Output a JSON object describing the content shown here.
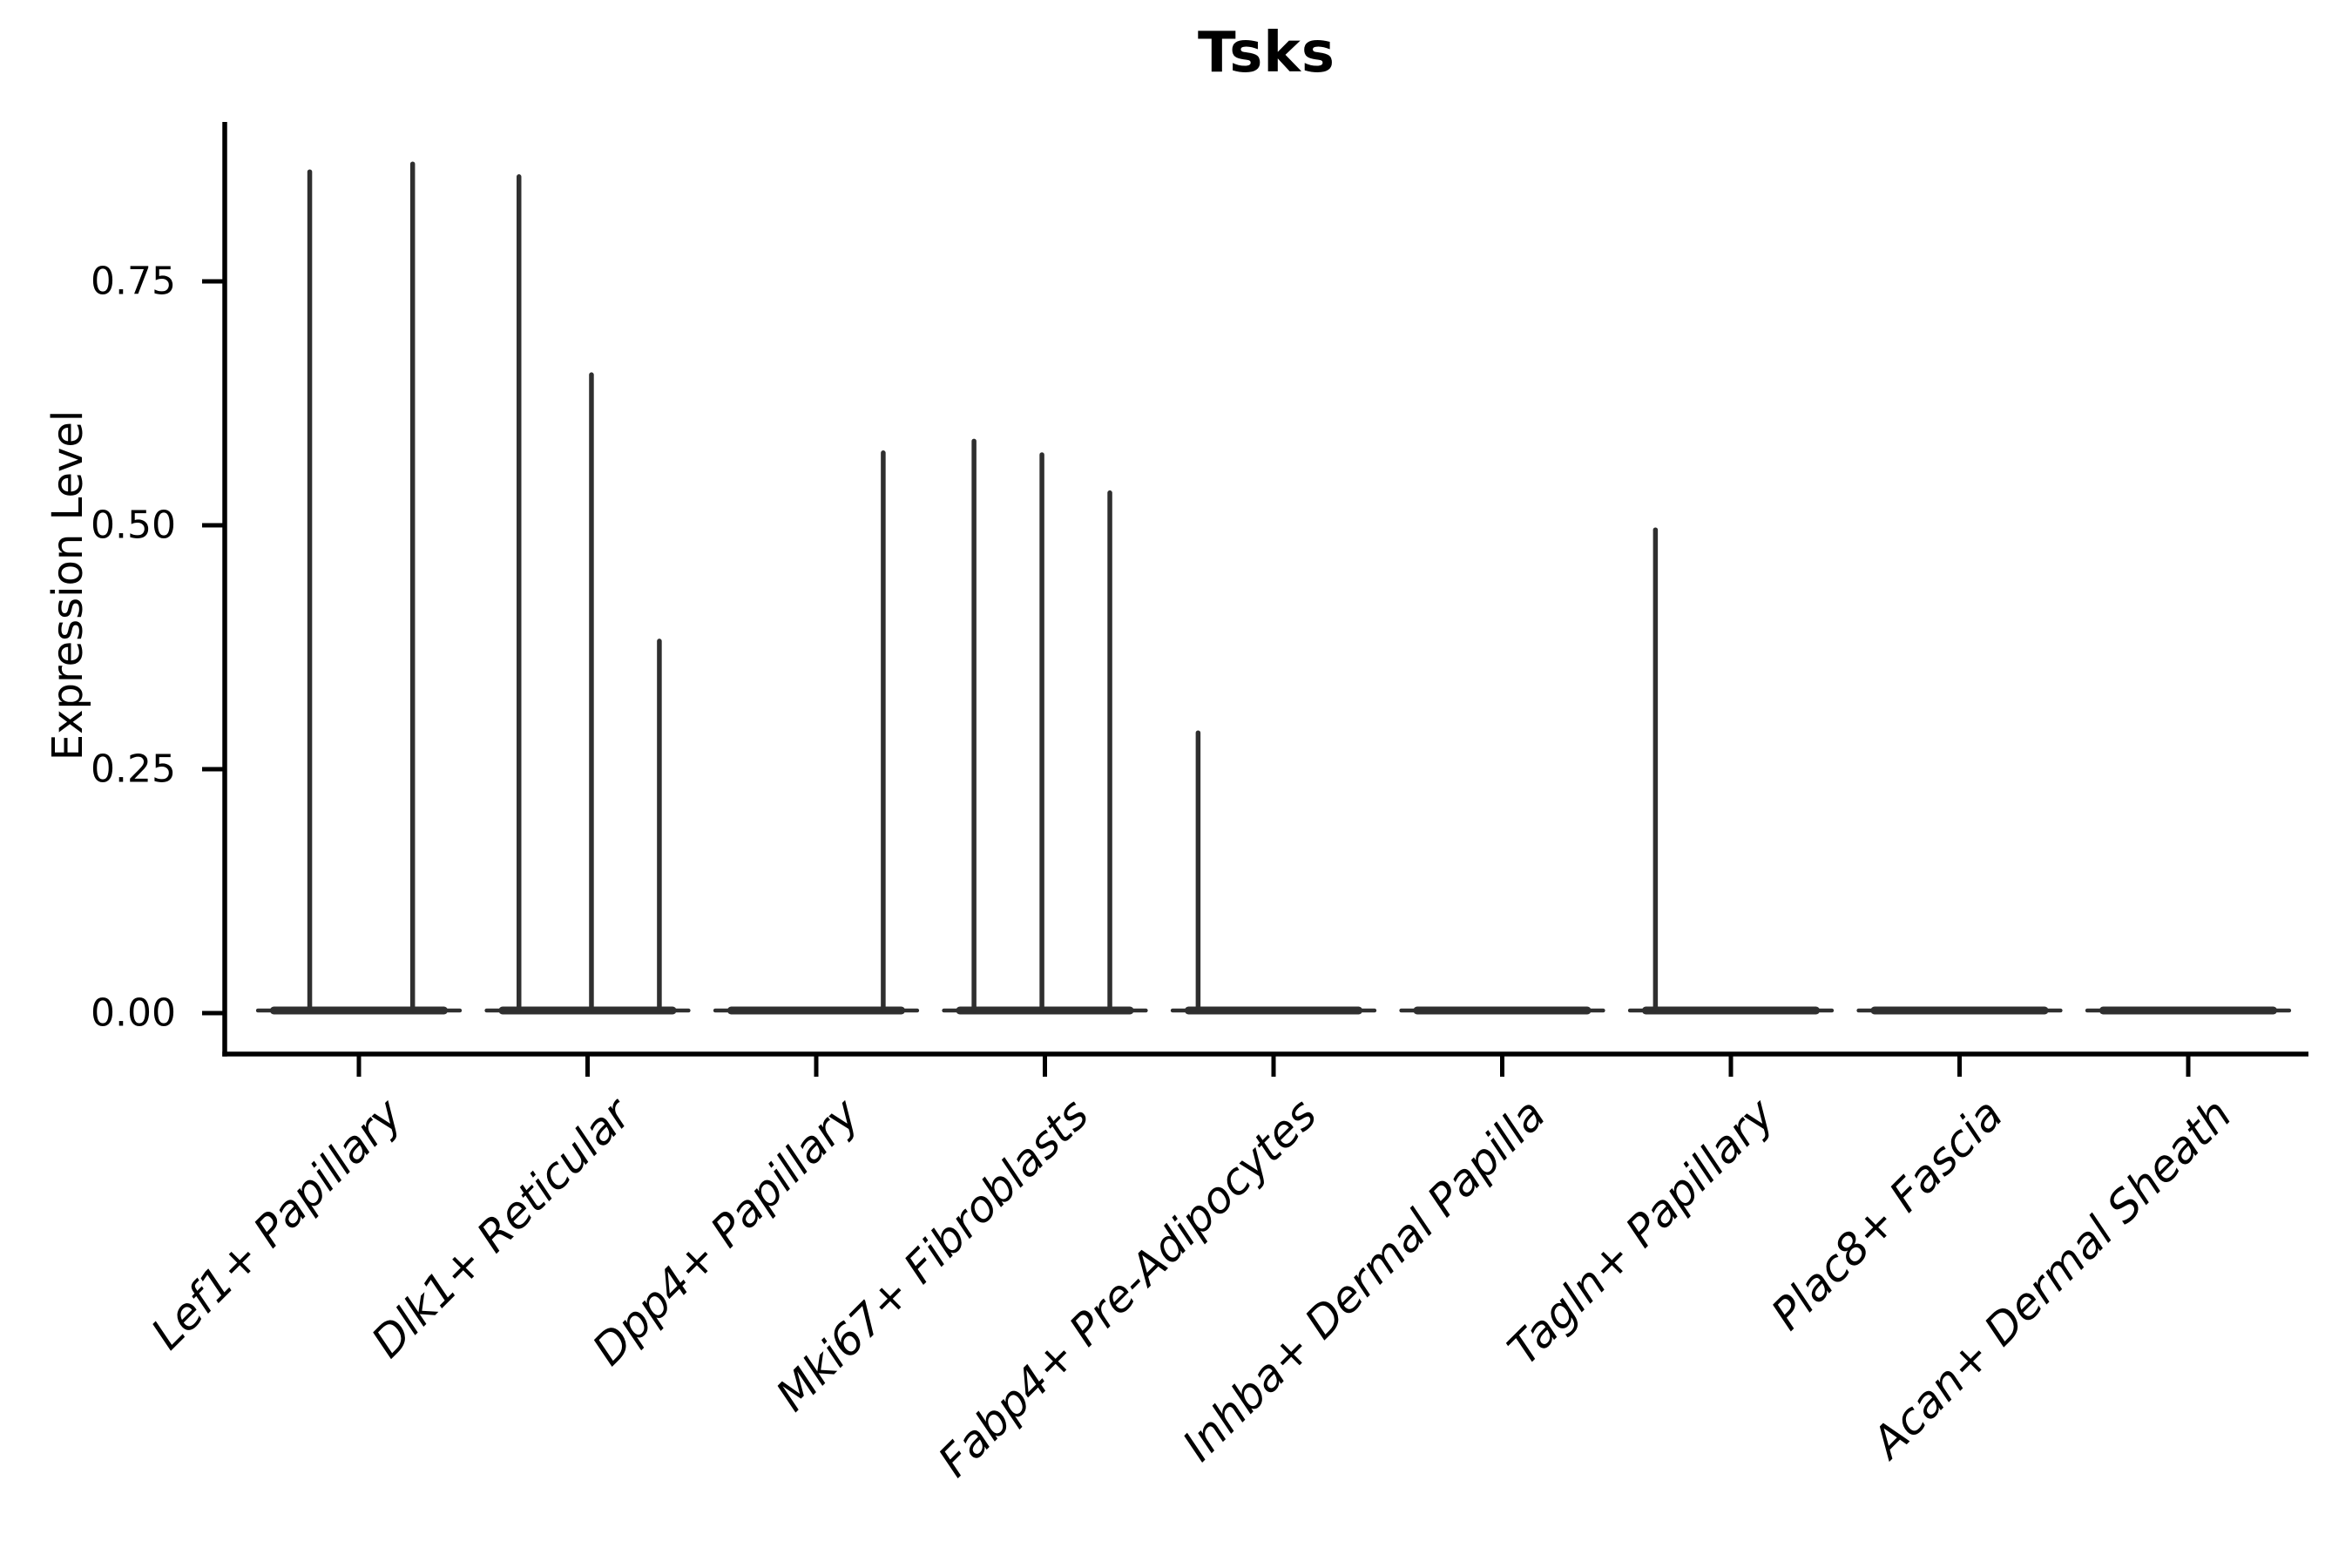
{
  "figure": {
    "title": "Tsks",
    "background": "#ffffff"
  },
  "chart_data": {
    "type": "violin",
    "title": "Tsks",
    "xlabel": "",
    "ylabel": "Expression Level",
    "ylim": [
      -0.04,
      0.92
    ],
    "grid": false,
    "legend": null,
    "yticks": [
      {
        "label": "0.00",
        "value": 0.0
      },
      {
        "label": "0.25",
        "value": 0.25
      },
      {
        "label": "0.50",
        "value": 0.5
      },
      {
        "label": "0.75",
        "value": 0.75
      }
    ],
    "categories": [
      "Lef1+ Papillary",
      "Dlk1+ Reticular",
      "Dpp4+ Papillary",
      "Mki67+ Fibroblasts",
      "Fabp4+ Pre-Adipocytes",
      "Inhba+ Dermal Papilla",
      "Tagln+ Papillary",
      "Plac8+ Fascia",
      "Acan+ Dermal Sheath"
    ],
    "violins": [
      {
        "category": "Lef1+ Papillary",
        "base_width": 0.9,
        "base_value": 0.0,
        "spikes": [
          {
            "dx": -0.215,
            "value": 0.865
          },
          {
            "dx": 0.235,
            "value": 0.873
          }
        ]
      },
      {
        "category": "Dlk1+ Reticular",
        "base_width": 0.9,
        "base_value": 0.0,
        "spikes": [
          {
            "dx": -0.3,
            "value": 0.86
          },
          {
            "dx": 0.017,
            "value": 0.657
          },
          {
            "dx": 0.314,
            "value": 0.384
          }
        ]
      },
      {
        "category": "Dpp4+ Papillary",
        "base_width": 0.9,
        "base_value": 0.0,
        "spikes": [
          {
            "dx": 0.293,
            "value": 0.577
          }
        ]
      },
      {
        "category": "Mki67+ Fibroblasts",
        "base_width": 0.9,
        "base_value": 0.0,
        "spikes": [
          {
            "dx": -0.31,
            "value": 0.589
          },
          {
            "dx": -0.013,
            "value": 0.575
          },
          {
            "dx": 0.284,
            "value": 0.536
          }
        ]
      },
      {
        "category": "Fabp4+ Pre-Adipocytes",
        "base_width": 0.9,
        "base_value": 0.0,
        "spikes": [
          {
            "dx": -0.33,
            "value": 0.29
          }
        ]
      },
      {
        "category": "Inhba+ Dermal Papilla",
        "base_width": 0.9,
        "base_value": 0.0,
        "spikes": []
      },
      {
        "category": "Tagln+ Papillary",
        "base_width": 0.9,
        "base_value": 0.0,
        "spikes": [
          {
            "dx": -0.33,
            "value": 0.498
          }
        ]
      },
      {
        "category": "Plac8+ Fascia",
        "base_width": 0.9,
        "base_value": 0.0,
        "spikes": []
      },
      {
        "category": "Acan+ Dermal Sheath",
        "base_width": 0.9,
        "base_value": 0.0,
        "spikes": []
      }
    ],
    "colors": {
      "violin": "#2f2f2f",
      "axis": "#000000",
      "text": "#000000"
    }
  }
}
